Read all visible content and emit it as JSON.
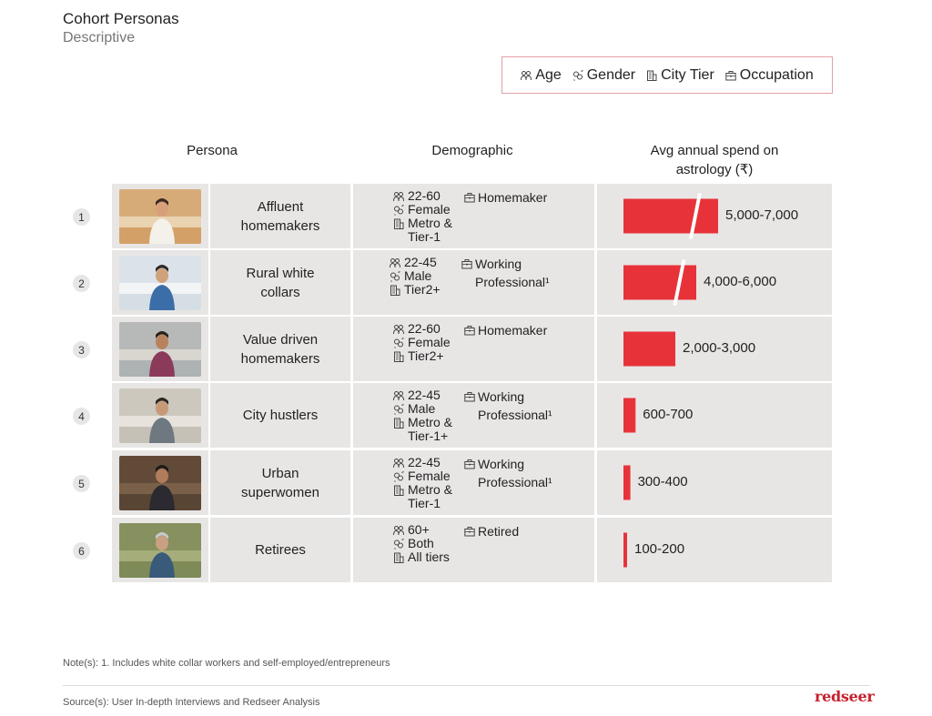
{
  "header": {
    "title": "Cohort Personas",
    "subtitle": "Descriptive"
  },
  "legend": {
    "items": [
      {
        "label": "Age",
        "icon": "people-icon"
      },
      {
        "label": "Gender",
        "icon": "gender-icon"
      },
      {
        "label": "City Tier",
        "icon": "building-icon"
      },
      {
        "label": "Occupation",
        "icon": "briefcase-icon"
      }
    ]
  },
  "columns": {
    "persona": "Persona",
    "demographic": "Demographic",
    "spend_line1": "Avg annual spend on",
    "spend_line2": "astrology (₹)"
  },
  "rows": [
    {
      "num": "1",
      "name_l1": "Affluent",
      "name_l2": "homemakers",
      "age": "22-60",
      "gender": "Female",
      "tier_l1": "Metro &",
      "tier_l2": "Tier-1",
      "occ_l1": "Homemaker",
      "occ_l2": ""
    },
    {
      "num": "2",
      "name_l1": "Rural white",
      "name_l2": "collars",
      "age": "22-45",
      "gender": "Male",
      "tier_l1": "Tier2+",
      "tier_l2": "",
      "occ_l1": "Working",
      "occ_l2": "Professional¹"
    },
    {
      "num": "3",
      "name_l1": "Value driven",
      "name_l2": "homemakers",
      "age": "22-60",
      "gender": "Female",
      "tier_l1": "Tier2+",
      "tier_l2": "",
      "occ_l1": "Homemaker",
      "occ_l2": ""
    },
    {
      "num": "4",
      "name_l1": "City hustlers",
      "name_l2": "",
      "age": "22-45",
      "gender": "Male",
      "tier_l1": "Metro &",
      "tier_l2": "Tier-1+",
      "occ_l1": "Working",
      "occ_l2": "Professional¹"
    },
    {
      "num": "5",
      "name_l1": "Urban",
      "name_l2": "superwomen",
      "age": "22-45",
      "gender": "Female",
      "tier_l1": "Metro &",
      "tier_l2": "Tier-1",
      "occ_l1": "Working",
      "occ_l2": "Professional¹"
    },
    {
      "num": "6",
      "name_l1": "Retirees",
      "name_l2": "",
      "age": "60+",
      "gender": "Both",
      "tier_l1": "All tiers",
      "tier_l2": "",
      "occ_l1": "Retired",
      "occ_l2": ""
    }
  ],
  "chart_data": {
    "type": "bar",
    "orientation": "horizontal",
    "categories": [
      "Affluent homemakers",
      "Rural white collars",
      "Value driven homemakers",
      "City hustlers",
      "Urban superwomen",
      "Retirees"
    ],
    "value_labels": [
      "5,000-7,000",
      "4,000-6,000",
      "2,000-3,000",
      "600-700",
      "300-400",
      "100-200"
    ],
    "ranges": [
      [
        5000,
        7000
      ],
      [
        4000,
        6000
      ],
      [
        2000,
        3000
      ],
      [
        600,
        700
      ],
      [
        300,
        400
      ],
      [
        100,
        200
      ]
    ],
    "axis_break": [
      true,
      true,
      false,
      false,
      false,
      false
    ],
    "title": "",
    "xlabel": "Avg annual spend on astrology (₹)",
    "ylabel": "",
    "color": "#e8323a"
  },
  "footer": {
    "note": "Note(s): 1. Includes white collar workers and self-employed/entrepreneurs",
    "source": "Source(s): User In-depth Interviews and Redseer Analysis",
    "brand": "redseer"
  }
}
